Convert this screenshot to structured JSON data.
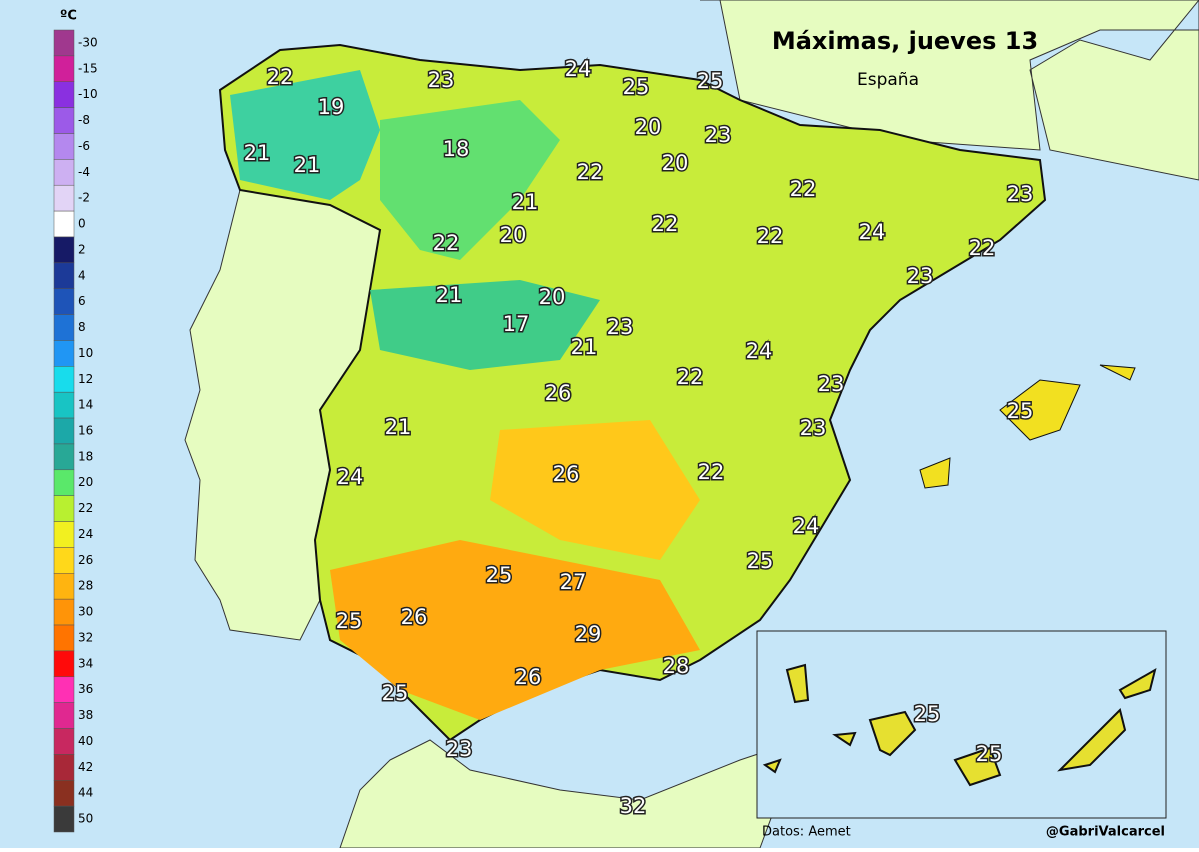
{
  "title": "Máximas, jueves 13",
  "subtitle": "España",
  "legend": {
    "unit": "ºC",
    "labels": [
      -30,
      -15,
      -10,
      -8,
      -6,
      -4,
      -2,
      0,
      2,
      4,
      6,
      8,
      10,
      12,
      14,
      16,
      18,
      20,
      22,
      24,
      26,
      28,
      30,
      32,
      34,
      36,
      38,
      40,
      42,
      44,
      50
    ],
    "colors": [
      "#a0388e",
      "#d0209a",
      "#8a30e0",
      "#9c5ae8",
      "#b488ee",
      "#cdb0f2",
      "#e2d4f6",
      "#ffffff",
      "#161a66",
      "#1c3a98",
      "#1e54b8",
      "#1e72d6",
      "#2096f4",
      "#18dcec",
      "#18c4c4",
      "#1ca8a8",
      "#28a896",
      "#5ae86a",
      "#b8f030",
      "#f2f020",
      "#ffd81a",
      "#ffb410",
      "#ff9408",
      "#ff7400",
      "#ff0a0a",
      "#ff30b4",
      "#e02890",
      "#c82860",
      "#a82838",
      "#8a3020",
      "#3a3a3a"
    ]
  },
  "temperatures": [
    22,
    23,
    24,
    25,
    25,
    19,
    20,
    23,
    18,
    21,
    21,
    22,
    20,
    22,
    23,
    21,
    20,
    22,
    22,
    24,
    22,
    22,
    23,
    21,
    20,
    17,
    23,
    21,
    24,
    22,
    23,
    26,
    25,
    21,
    23,
    24,
    26,
    22,
    24,
    25,
    25,
    27,
    26,
    25,
    29,
    28,
    26,
    25,
    25,
    25,
    23,
    32
  ],
  "source": "Datos: Aemet",
  "credit": "@GabriValcarcel"
}
